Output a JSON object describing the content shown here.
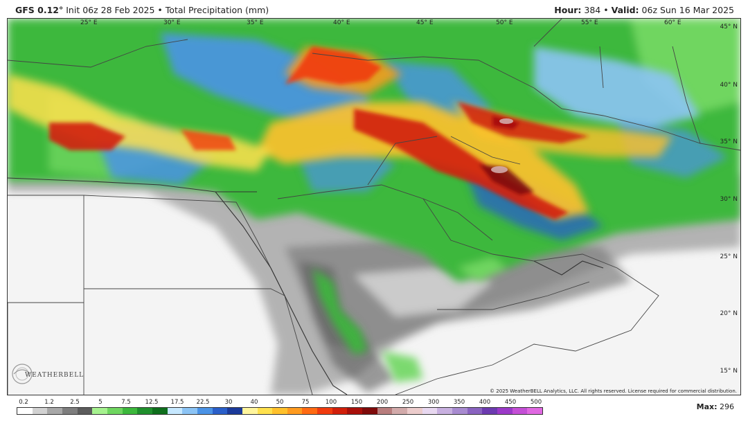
{
  "header": {
    "model": "GFS 0.12°",
    "init_label": "Init 06z 28 Feb 2025",
    "separator": "•",
    "product": "Total Precipitation (mm)",
    "hour_label": "Hour:",
    "hour_value": "384",
    "valid_label": "Valid:",
    "valid_value": "06z Sun 16 Mar 2025"
  },
  "map": {
    "longitude_labels": [
      "25° E",
      "30° E",
      "35° E",
      "40° E",
      "45° E",
      "50° E",
      "55° E",
      "60° E"
    ],
    "latitude_labels": [
      "45° N",
      "40° N",
      "35° N",
      "30° N",
      "25° N",
      "20° N",
      "15° N"
    ],
    "land_color": "#f4f4f4",
    "border_color": "#444444"
  },
  "branding": {
    "logo_text": "WEATHERBELL",
    "copyright": "© 2025 WeatherBELL Analytics, LLC. All rights reserved. License required for commercial distribution."
  },
  "legend": {
    "labels": [
      "0.2",
      "1.2",
      "2.5",
      "5",
      "7.5",
      "12.5",
      "17.5",
      "22.5",
      "30",
      "40",
      "50",
      "75",
      "100",
      "150",
      "200",
      "250",
      "300",
      "350",
      "400",
      "450",
      "500"
    ],
    "colors": [
      "#ffffff",
      "#d2d2d2",
      "#a8a8a8",
      "#7e7e7e",
      "#5c5c5c",
      "#a6f28f",
      "#6fd660",
      "#3cb83c",
      "#1f8f2c",
      "#0e6e1c",
      "#c6e8ff",
      "#8cc4f5",
      "#4b93e6",
      "#2a5fc9",
      "#1b3a9a",
      "#fff59d",
      "#ffe14d",
      "#ffc12b",
      "#ff9b1f",
      "#ff6a12",
      "#f03b0e",
      "#d11f0a",
      "#a80f0a",
      "#7e0a0a",
      "#b87d7d",
      "#d2aaaa",
      "#eccccc",
      "#e8d8f0",
      "#c8b0e0",
      "#a88bd0",
      "#8a63c0",
      "#6c3ab0",
      "#9b39c8",
      "#c44fd6",
      "#e068e2"
    ],
    "max_label": "Max:",
    "max_value": "296"
  }
}
